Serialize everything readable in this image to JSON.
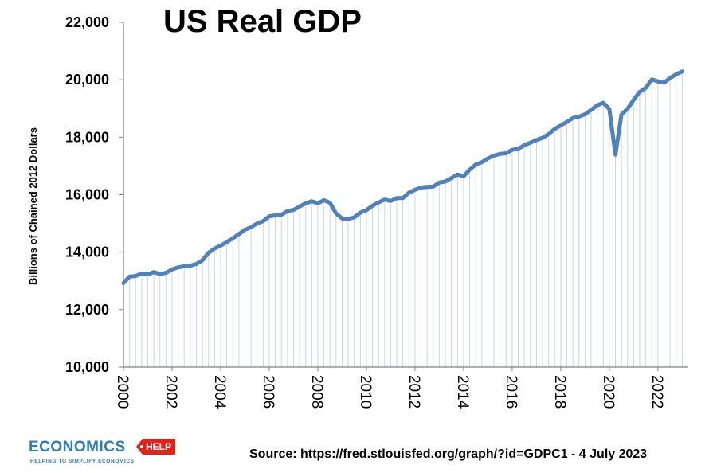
{
  "chart_data": {
    "type": "line",
    "title": "US Real GDP",
    "xlabel": "",
    "ylabel": "Billions of Chained 2012 Dollars",
    "ylim": [
      10000,
      22000
    ],
    "xlim": [
      2000,
      2023.25
    ],
    "yticks": [
      10000,
      12000,
      14000,
      16000,
      18000,
      20000,
      22000
    ],
    "ytick_labels": [
      "10,000",
      "12,000",
      "14,000",
      "16,000",
      "18,000",
      "20,000",
      "22,000"
    ],
    "xticks": [
      2000,
      2002,
      2004,
      2006,
      2008,
      2010,
      2012,
      2014,
      2016,
      2018,
      2020,
      2022
    ],
    "xtick_labels": [
      "2000",
      "2002",
      "2004",
      "2006",
      "2008",
      "2010",
      "2012",
      "2014",
      "2016",
      "2018",
      "2020",
      "2022"
    ],
    "grid": "vertical",
    "series": [
      {
        "name": "US Real GDP",
        "color": "#4f81bd",
        "x": [
          2000.0,
          2000.25,
          2000.5,
          2000.75,
          2001.0,
          2001.25,
          2001.5,
          2001.75,
          2002.0,
          2002.25,
          2002.5,
          2002.75,
          2003.0,
          2003.25,
          2003.5,
          2003.75,
          2004.0,
          2004.25,
          2004.5,
          2004.75,
          2005.0,
          2005.25,
          2005.5,
          2005.75,
          2006.0,
          2006.25,
          2006.5,
          2006.75,
          2007.0,
          2007.25,
          2007.5,
          2007.75,
          2008.0,
          2008.25,
          2008.5,
          2008.75,
          2009.0,
          2009.25,
          2009.5,
          2009.75,
          2010.0,
          2010.25,
          2010.5,
          2010.75,
          2011.0,
          2011.25,
          2011.5,
          2011.75,
          2012.0,
          2012.25,
          2012.5,
          2012.75,
          2013.0,
          2013.25,
          2013.5,
          2013.75,
          2014.0,
          2014.25,
          2014.5,
          2014.75,
          2015.0,
          2015.25,
          2015.5,
          2015.75,
          2016.0,
          2016.25,
          2016.5,
          2016.75,
          2017.0,
          2017.25,
          2017.5,
          2017.75,
          2018.0,
          2018.25,
          2018.5,
          2018.75,
          2019.0,
          2019.25,
          2019.5,
          2019.75,
          2020.0,
          2020.25,
          2020.5,
          2020.75,
          2021.0,
          2021.25,
          2021.5,
          2021.75,
          2022.0,
          2022.25,
          2022.5,
          2022.75,
          2023.0
        ],
        "values": [
          12920,
          13150,
          13170,
          13260,
          13220,
          13310,
          13240,
          13280,
          13400,
          13470,
          13510,
          13530,
          13590,
          13720,
          13980,
          14130,
          14230,
          14350,
          14480,
          14630,
          14780,
          14870,
          15000,
          15080,
          15250,
          15280,
          15300,
          15430,
          15470,
          15590,
          15700,
          15770,
          15700,
          15810,
          15720,
          15350,
          15170,
          15160,
          15210,
          15380,
          15460,
          15620,
          15730,
          15830,
          15780,
          15880,
          15880,
          16070,
          16170,
          16250,
          16270,
          16280,
          16420,
          16460,
          16580,
          16700,
          16640,
          16870,
          17050,
          17130,
          17260,
          17360,
          17420,
          17440,
          17560,
          17600,
          17720,
          17810,
          17900,
          17980,
          18110,
          18290,
          18410,
          18530,
          18670,
          18720,
          18800,
          18950,
          19110,
          19200,
          18980,
          17390,
          18790,
          18990,
          19300,
          19580,
          19720,
          20010,
          19940,
          19900,
          20060,
          20190,
          20290
        ]
      }
    ]
  },
  "source_text": "Source: https://fred.stlouisfed.org/graph/?id=GDPC1 - 4 July 2023",
  "logo": {
    "main": "ECONOMICS",
    "badge": "HELP",
    "tagline": "HELPING TO SIMPLIFY ECONOMICS"
  },
  "colors": {
    "line": "#4f81bd",
    "grid": "#c9d6e8",
    "axis": "#7f7f7f"
  }
}
